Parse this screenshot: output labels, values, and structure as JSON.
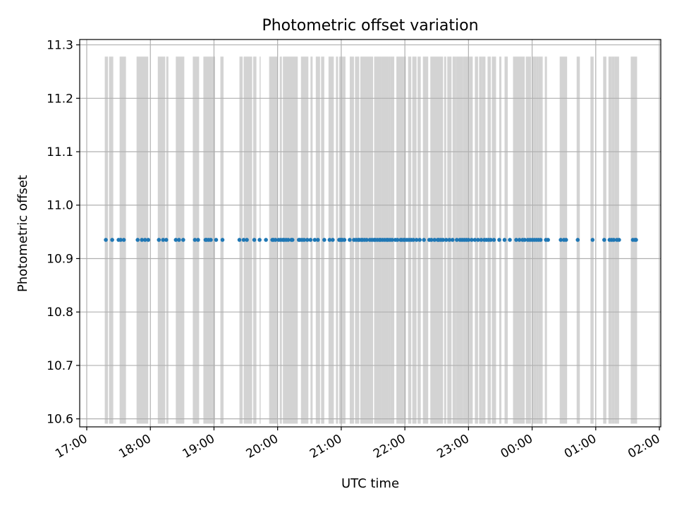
{
  "chart_data": {
    "type": "scatter",
    "title": "Photometric offset variation",
    "xlabel": "UTC time",
    "ylabel": "Photometric offset",
    "x_axis_type": "time",
    "xlim": [
      "17:00",
      "26:00"
    ],
    "ylim": [
      10.585,
      11.31
    ],
    "x_ticks": [
      "17:00",
      "18:00",
      "19:00",
      "20:00",
      "21:00",
      "22:00",
      "23:00",
      "00:00",
      "01:00",
      "02:00"
    ],
    "y_ticks": [
      "10.6",
      "10.7",
      "10.8",
      "10.9",
      "11.0",
      "11.1",
      "11.2",
      "11.3"
    ],
    "grid": true,
    "legend": "none",
    "colors": {
      "points": "#1f77b4",
      "bands": "#d3d3d3",
      "grid": "#b0b0b0",
      "axes": "#000000"
    },
    "band_y_range": [
      10.591,
      11.278
    ],
    "series": [
      {
        "marker": "point",
        "y_value": 10.935,
        "x": [
          "17:18",
          "17:24",
          "17:30",
          "17:32",
          "17:35",
          "17:48",
          "17:52",
          "17:55",
          "17:58",
          "18:08",
          "18:12",
          "18:15",
          "18:24",
          "18:27",
          "18:31",
          "18:42",
          "18:45",
          "18:52",
          "18:53",
          "18:55",
          "18:57",
          "19:02",
          "19:08",
          "19:24",
          "19:28",
          "19:31",
          "19:38",
          "19:43",
          "19:49",
          "19:55",
          "19:56",
          "19:58",
          "20:01",
          "20:03",
          "20:05",
          "20:06",
          "20:08",
          "20:10",
          "20:13",
          "20:14",
          "20:20",
          "20:21",
          "20:23",
          "20:25",
          "20:28",
          "20:31",
          "20:35",
          "20:38",
          "20:44",
          "20:49",
          "20:52",
          "20:58",
          "20:59",
          "21:00",
          "21:01",
          "21:03",
          "21:08",
          "21:12",
          "21:14",
          "21:16",
          "21:17",
          "21:19",
          "21:20",
          "21:22",
          "21:24",
          "21:27",
          "21:29",
          "21:31",
          "21:32",
          "21:34",
          "21:36",
          "21:37",
          "21:39",
          "21:41",
          "21:43",
          "21:44",
          "21:46",
          "21:48",
          "21:51",
          "21:53",
          "21:56",
          "21:57",
          "21:59",
          "22:00",
          "22:02",
          "22:04",
          "22:06",
          "22:08",
          "22:11",
          "22:14",
          "22:18",
          "22:23",
          "22:25",
          "22:28",
          "22:31",
          "22:32",
          "22:34",
          "22:36",
          "22:39",
          "22:42",
          "22:45",
          "22:49",
          "22:52",
          "22:54",
          "22:56",
          "22:58",
          "23:00",
          "23:03",
          "23:06",
          "23:09",
          "23:12",
          "23:15",
          "23:17",
          "23:19",
          "23:21",
          "23:24",
          "23:29",
          "23:34",
          "23:39",
          "23:45",
          "23:48",
          "23:51",
          "23:53",
          "23:56",
          "23:58",
          "00:00",
          "00:02",
          "00:04",
          "00:06",
          "00:08",
          "00:13",
          "00:15",
          "00:27",
          "00:30",
          "00:32",
          "00:43",
          "00:57",
          "01:08",
          "01:13",
          "01:15",
          "01:17",
          "01:20",
          "01:22",
          "01:35",
          "01:37",
          "01:38"
        ]
      }
    ],
    "bands": [
      [
        "17:17",
        "17:20"
      ],
      [
        "17:21",
        "17:25"
      ],
      [
        "17:31",
        "17:37"
      ],
      [
        "17:47",
        "17:58"
      ],
      [
        "18:07",
        "18:14"
      ],
      [
        "18:15",
        "18:17"
      ],
      [
        "18:24",
        "18:32"
      ],
      [
        "18:40",
        "18:46"
      ],
      [
        "18:50",
        "18:58"
      ],
      [
        "18:58",
        "19:01"
      ],
      [
        "19:06",
        "19:09"
      ],
      [
        "19:24",
        "19:27"
      ],
      [
        "19:28",
        "19:36"
      ],
      [
        "19:37",
        "19:40"
      ],
      [
        "19:43",
        "19:44"
      ],
      [
        "19:52",
        "20:00"
      ],
      [
        "20:02",
        "20:04"
      ],
      [
        "20:05",
        "20:19"
      ],
      [
        "20:22",
        "20:29"
      ],
      [
        "20:31",
        "20:33"
      ],
      [
        "20:36",
        "20:40"
      ],
      [
        "20:41",
        "20:44"
      ],
      [
        "20:48",
        "20:53"
      ],
      [
        "20:55",
        "20:57"
      ],
      [
        "20:58",
        "21:02"
      ],
      [
        "21:02",
        "21:04"
      ],
      [
        "21:08",
        "21:12"
      ],
      [
        "21:13",
        "21:17"
      ],
      [
        "21:18",
        "21:28"
      ],
      [
        "21:28",
        "21:30"
      ],
      [
        "21:31",
        "21:38"
      ],
      [
        "21:38",
        "21:44"
      ],
      [
        "21:44",
        "21:46"
      ],
      [
        "21:46",
        "21:50"
      ],
      [
        "21:52",
        "21:59"
      ],
      [
        "21:59",
        "22:01"
      ],
      [
        "22:03",
        "22:06"
      ],
      [
        "22:07",
        "22:11"
      ],
      [
        "22:12",
        "22:15"
      ],
      [
        "22:17",
        "22:22"
      ],
      [
        "22:24",
        "22:36"
      ],
      [
        "22:37",
        "22:39"
      ],
      [
        "22:40",
        "22:44"
      ],
      [
        "22:45",
        "22:48"
      ],
      [
        "22:48",
        "22:55"
      ],
      [
        "22:55",
        "23:01"
      ],
      [
        "23:01",
        "23:04"
      ],
      [
        "23:06",
        "23:09"
      ],
      [
        "23:10",
        "23:13"
      ],
      [
        "23:13",
        "23:16"
      ],
      [
        "23:18",
        "23:21"
      ],
      [
        "23:22",
        "23:26"
      ],
      [
        "23:29",
        "23:31"
      ],
      [
        "23:34",
        "23:37"
      ],
      [
        "23:42",
        "23:48"
      ],
      [
        "23:48",
        "23:53"
      ],
      [
        "23:54",
        "23:57"
      ],
      [
        "23:57",
        "23:59"
      ],
      [
        "00:00",
        "00:04"
      ],
      [
        "00:04",
        "00:06"
      ],
      [
        "00:06",
        "00:09"
      ],
      [
        "00:09",
        "00:10"
      ],
      [
        "00:12",
        "00:14"
      ],
      [
        "00:26",
        "00:33"
      ],
      [
        "00:42",
        "00:45"
      ],
      [
        "00:55",
        "00:58"
      ],
      [
        "01:07",
        "01:10"
      ],
      [
        "01:12",
        "01:15"
      ],
      [
        "01:15",
        "01:18"
      ],
      [
        "01:18",
        "01:22"
      ],
      [
        "01:33",
        "01:39"
      ]
    ]
  }
}
